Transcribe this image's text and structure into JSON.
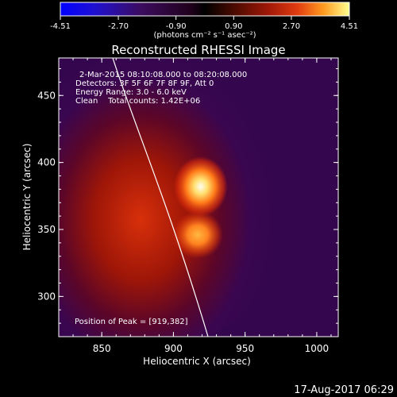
{
  "colorbar": {
    "ticks": [
      "-4.51",
      "-2.70",
      "-0.90",
      "0.90",
      "2.70",
      "4.51"
    ],
    "unit_label": "(photons cm⁻² s⁻¹ asec⁻²)",
    "min": -4.51,
    "max": 4.51
  },
  "image": {
    "title": "Reconstructed RHESSI Image",
    "info_lines": [
      "2-Mar-2015 08:10:08.000 to 08:20:08.000",
      "Detectors: 3F 5F 6F 7F 8F 9F, Att 0",
      "Energy Range: 3.0 - 6.0 keV",
      "Clean    Total counts: 1.42E+06"
    ],
    "peak_text": "Position of Peak = [919,382]",
    "x_label": "Heliocentric X (arcsec)",
    "y_label": "Heliocentric Y (arcsec)",
    "x_ticks": [
      "850",
      "900",
      "950",
      "1000"
    ],
    "y_ticks": [
      "300",
      "350",
      "400",
      "450"
    ],
    "x_range": [
      820,
      1015
    ],
    "y_range": [
      270,
      478
    ],
    "sources": [
      {
        "x": 919,
        "y": 382
      },
      {
        "x": 917,
        "y": 346
      }
    ]
  },
  "footer": {
    "date": "17-Aug-2017 06:29"
  },
  "colors": {
    "background": "#000000",
    "text": "#ffffff"
  }
}
